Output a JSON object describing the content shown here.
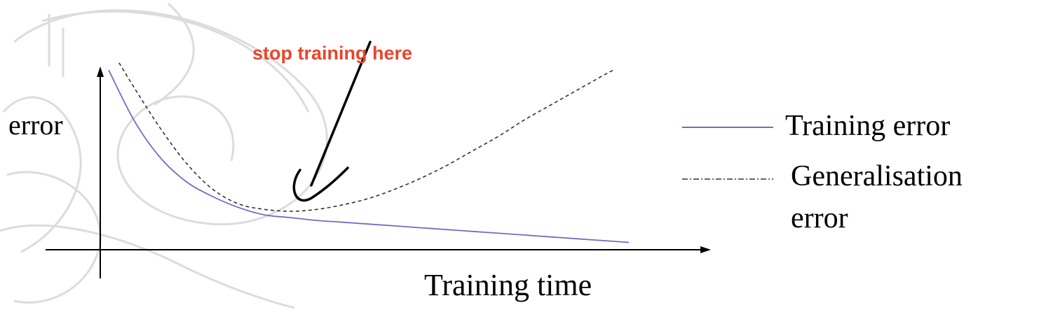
{
  "chart_data": {
    "type": "line",
    "ylabel": "error",
    "xlabel": "Training time",
    "x": [
      0,
      0.05,
      0.1,
      0.15,
      0.2,
      0.25,
      0.3,
      0.35,
      0.4,
      0.45,
      0.5,
      0.55,
      0.6,
      0.65,
      0.7,
      0.75,
      0.8,
      0.85,
      0.9,
      0.95,
      1.0
    ],
    "xlim": [
      0,
      1
    ],
    "ylim": [
      0,
      1
    ],
    "grid": false,
    "legend": "right",
    "series": [
      {
        "name": "Training error",
        "style": "solid",
        "color": "#6b6fc4",
        "x": [
          0,
          0.05,
          0.1,
          0.15,
          0.2,
          0.25,
          0.3,
          0.35,
          0.4,
          0.45,
          0.5,
          0.55,
          0.6,
          0.65,
          0.7,
          0.75,
          0.8,
          0.85,
          0.9,
          0.95,
          1.0
        ],
        "values": [
          0.98,
          0.7,
          0.5,
          0.37,
          0.29,
          0.23,
          0.19,
          0.175,
          0.16,
          0.15,
          0.14,
          0.13,
          0.12,
          0.11,
          0.1,
          0.09,
          0.08,
          0.07,
          0.06,
          0.05,
          0.04
        ]
      },
      {
        "name": "Generalisation error",
        "legend_lines": [
          "Generalisation",
          "error"
        ],
        "style": "dashed",
        "color": "#333333",
        "x": [
          0.02,
          0.05,
          0.1,
          0.15,
          0.2,
          0.25,
          0.3,
          0.35,
          0.4,
          0.45,
          0.5,
          0.55,
          0.6,
          0.65,
          0.7,
          0.75,
          0.8,
          0.85,
          0.9,
          0.95,
          0.97
        ],
        "values": [
          1.02,
          0.88,
          0.66,
          0.47,
          0.33,
          0.25,
          0.22,
          0.21,
          0.22,
          0.245,
          0.28,
          0.33,
          0.39,
          0.46,
          0.54,
          0.62,
          0.71,
          0.79,
          0.87,
          0.95,
          0.98
        ]
      }
    ],
    "annotations": [
      {
        "text": "stop training here",
        "color": "#e8452c",
        "points_to_x": 0.38
      }
    ]
  }
}
